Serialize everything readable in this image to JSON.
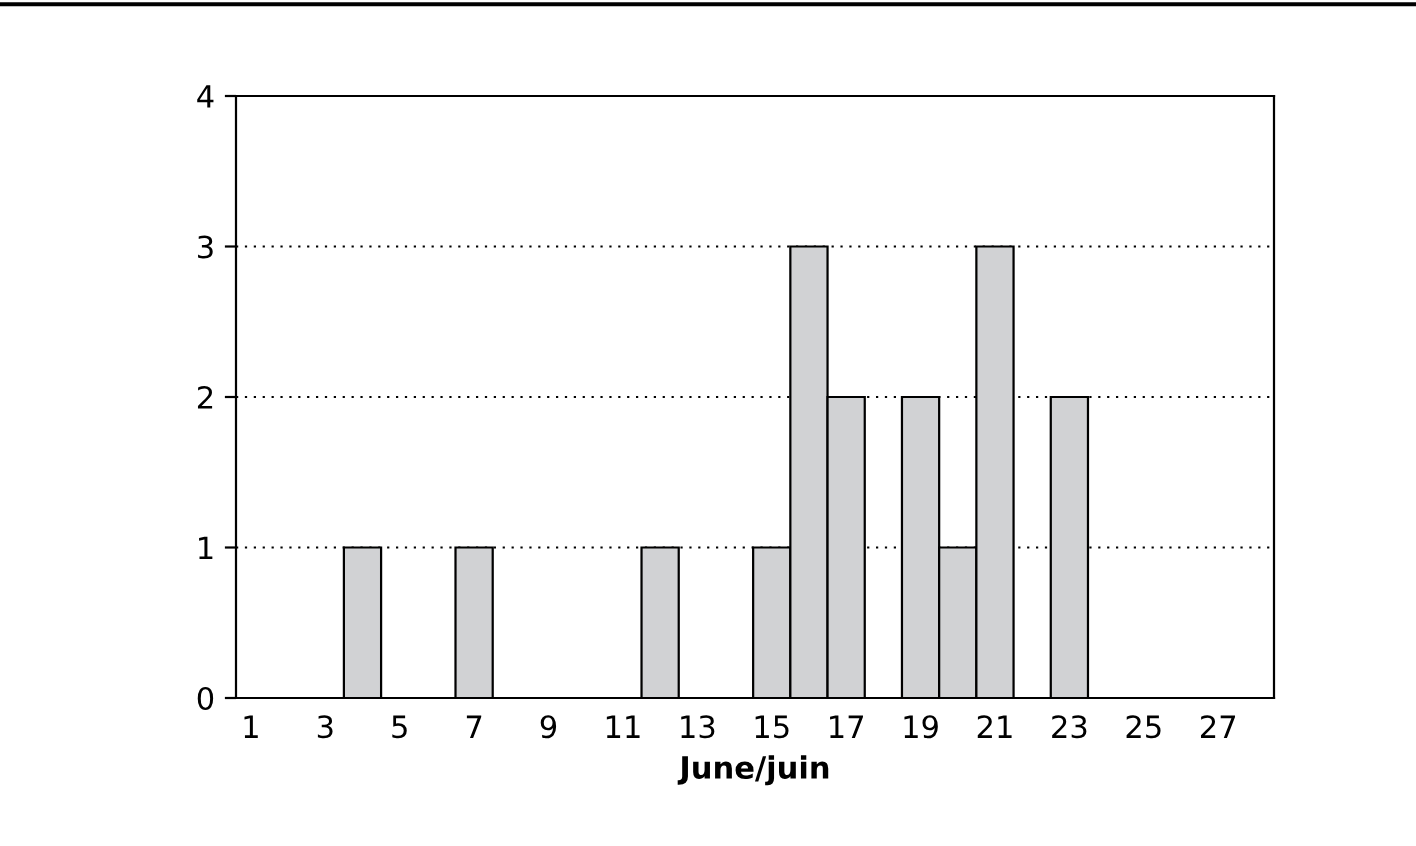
{
  "chart_data": {
    "type": "bar",
    "xlabel": "June/juin",
    "categories": [
      "1",
      null,
      "3",
      null,
      "5",
      null,
      "7",
      null,
      "9",
      null,
      "11",
      null,
      "13",
      null,
      "15",
      null,
      "17",
      null,
      "19",
      null,
      "21",
      null,
      "23",
      null,
      "25",
      null,
      "27",
      null
    ],
    "values": [
      0,
      0,
      0,
      1,
      0,
      0,
      1,
      0,
      0,
      0,
      0,
      1,
      0,
      0,
      1,
      3,
      2,
      0,
      2,
      1,
      3,
      0,
      2,
      0,
      0,
      0,
      0,
      0
    ],
    "color": "#d1d2d4",
    "ylim": [
      0,
      4
    ],
    "yticks": [
      0,
      1,
      2,
      3,
      4
    ],
    "grid": "y",
    "line_style": "dotted"
  }
}
